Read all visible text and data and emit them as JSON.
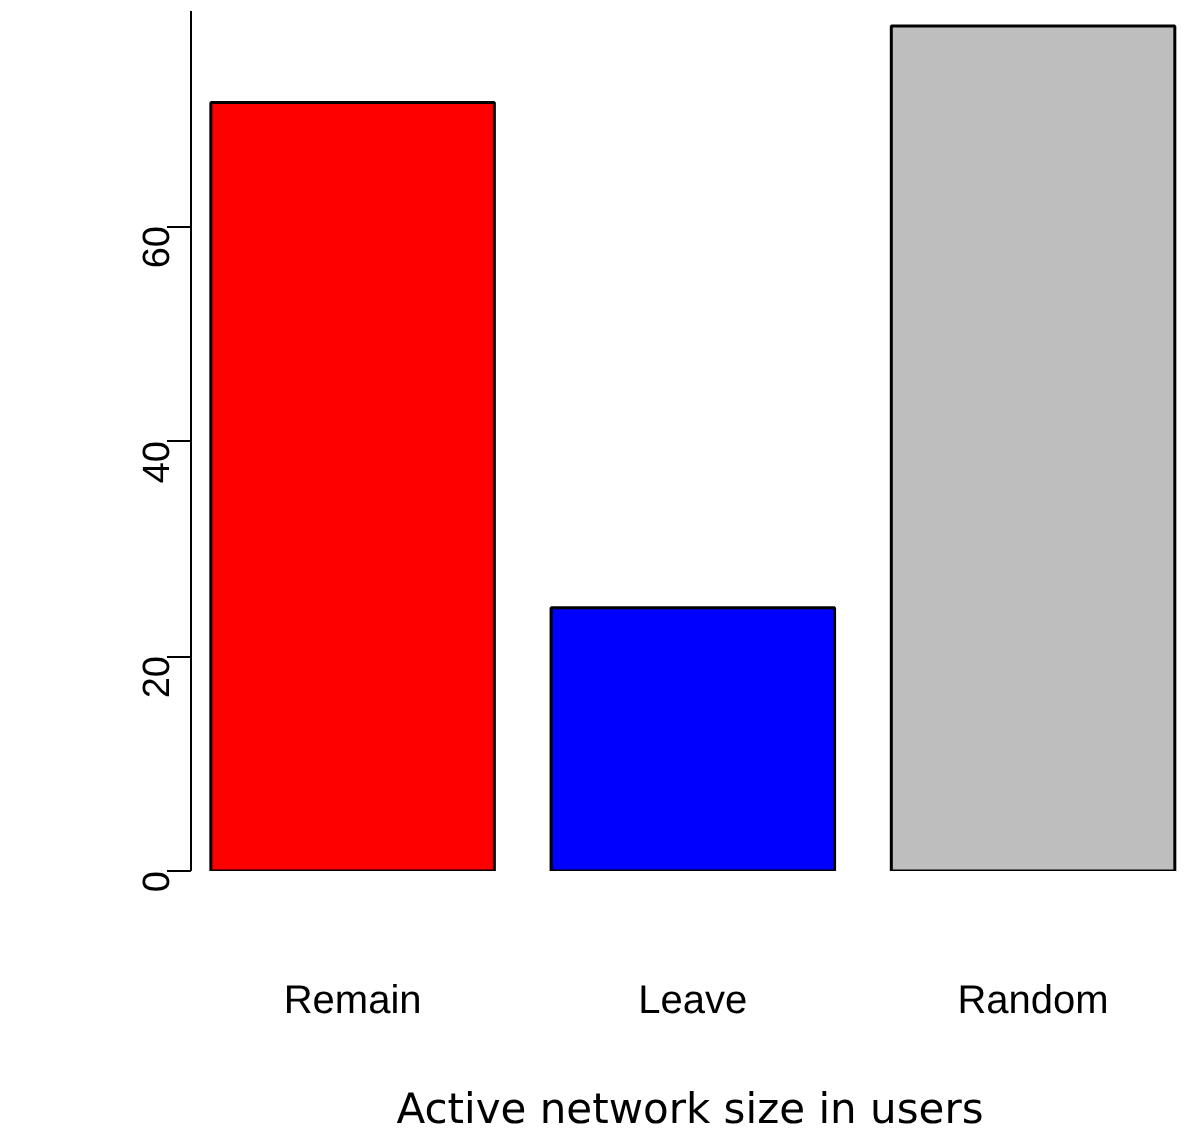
{
  "chart_data": {
    "type": "bar",
    "xlabel": "Active network size in users",
    "categories": [
      "Remain",
      "Leave",
      "Random"
    ],
    "values": [
      71.5,
      24.5,
      78.6
    ],
    "colors": [
      "#ff0000",
      "#0000ff",
      "#bebebe"
    ],
    "ylim": [
      0,
      80
    ],
    "yticks": [
      0,
      20,
      40,
      60
    ],
    "grid": false
  }
}
